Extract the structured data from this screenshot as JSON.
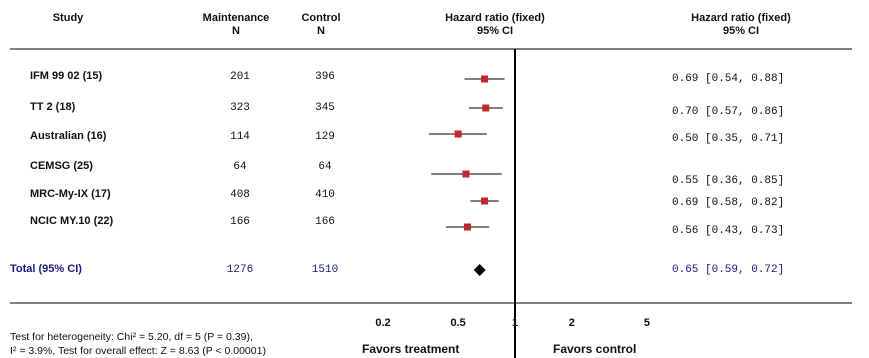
{
  "headers": {
    "study": "Study",
    "maintenance": "Maintenance",
    "maintenance_n": "N",
    "control": "Control",
    "control_n": "N",
    "hr_plot_line1": "Hazard ratio (fixed)",
    "hr_plot_line2": "95% CI",
    "hr_text_line1": "Hazard ratio (fixed)",
    "hr_text_line2": "95% CI"
  },
  "footer": {
    "heterogeneity": "Test for heterogeneity: Chi² = 5.20, df = 5 (P = 0.39),",
    "overall": "I² = 3.9%, Test for overall effect: Z = 8.63 (P < 0.00001)",
    "favors_left": "Favors treatment",
    "favors_right": "Favors control"
  },
  "colors": {
    "marker": "#c0282d",
    "total_text": "#1a1a80",
    "diamond": "#000000"
  },
  "chart_data": {
    "type": "forest",
    "x_scale": "log",
    "xlim": [
      0.2,
      5
    ],
    "x_ticks": [
      "0.2",
      "0.5",
      "1",
      "2",
      "5"
    ],
    "x_tick_values": [
      0.2,
      0.5,
      1,
      2,
      5
    ],
    "reference_line": 1,
    "studies": [
      {
        "name": "IFM 99 02 (15)",
        "maintenance_n": "201",
        "control_n": "396",
        "hr": 0.69,
        "lo": 0.54,
        "hi": 0.88,
        "ci_text": "0.69 [0.54, 0.88]"
      },
      {
        "name": "TT 2 (18)",
        "maintenance_n": "323",
        "control_n": "345",
        "hr": 0.7,
        "lo": 0.57,
        "hi": 0.86,
        "ci_text": "0.70 [0.57, 0.86]"
      },
      {
        "name": "Australian (16)",
        "maintenance_n": "114",
        "control_n": "129",
        "hr": 0.5,
        "lo": 0.35,
        "hi": 0.71,
        "ci_text": "0.50 [0.35, 0.71]"
      },
      {
        "name": "CEMSG (25)",
        "maintenance_n": "64",
        "control_n": "64",
        "hr": 0.55,
        "lo": 0.36,
        "hi": 0.85,
        "ci_text": "0.55 [0.36, 0.85]"
      },
      {
        "name": "MRC-My-IX (17)",
        "maintenance_n": "408",
        "control_n": "410",
        "hr": 0.69,
        "lo": 0.58,
        "hi": 0.82,
        "ci_text": "0.69 [0.58, 0.82]"
      },
      {
        "name": "NCIC MY.10 (22)",
        "maintenance_n": "166",
        "control_n": "166",
        "hr": 0.56,
        "lo": 0.43,
        "hi": 0.73,
        "ci_text": "0.56 [0.43, 0.73]"
      }
    ],
    "total": {
      "name": "Total (95% CI)",
      "maintenance_n": "1276",
      "control_n": "1510",
      "hr": 0.65,
      "lo": 0.59,
      "hi": 0.72,
      "ci_text": "0.65 [0.59, 0.72]"
    }
  }
}
